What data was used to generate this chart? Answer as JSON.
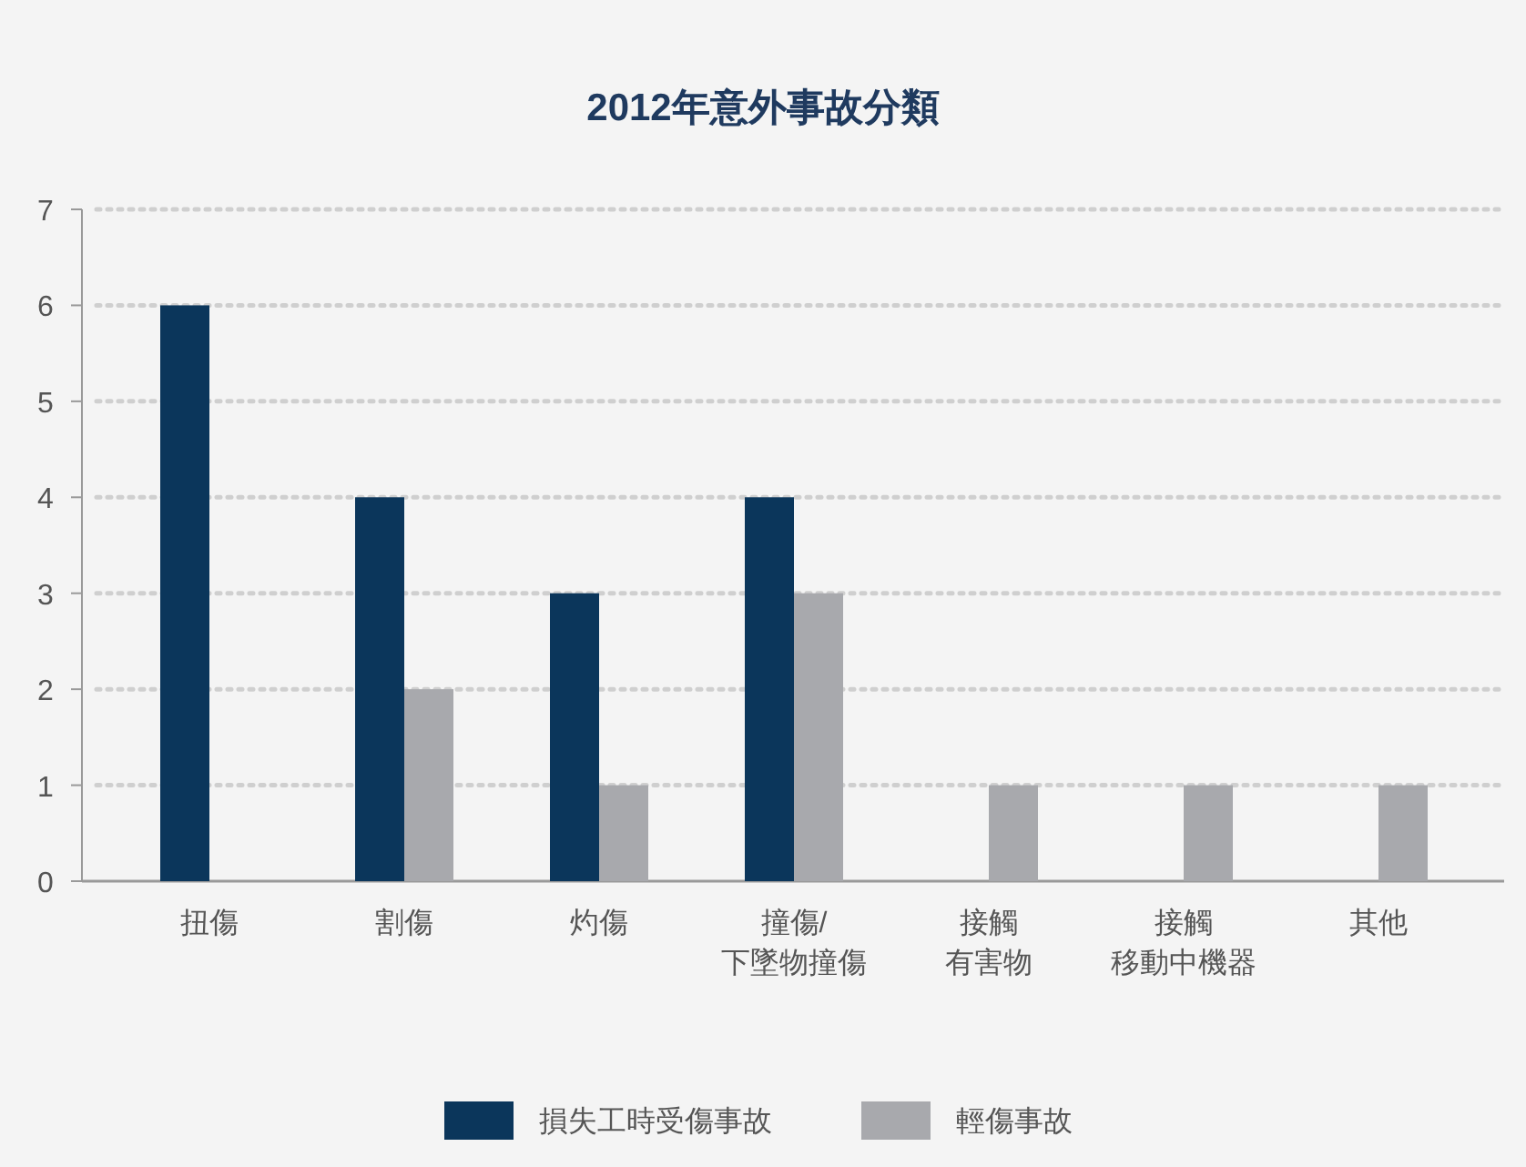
{
  "chart_data": {
    "type": "bar",
    "title": "2012年意外事故分類",
    "categories": [
      "扭傷",
      "割傷",
      "灼傷",
      "撞傷/下墜物撞傷",
      "接觸有害物",
      "接觸移動中機器",
      "其他"
    ],
    "series": [
      {
        "name": "損失工時受傷事故",
        "color": "#0b365b",
        "values": [
          6,
          4,
          3,
          4,
          null,
          null,
          null
        ]
      },
      {
        "name": "輕傷事故",
        "color": "#a8a9ad",
        "values": [
          null,
          2,
          1,
          3,
          1,
          1,
          1
        ]
      }
    ],
    "ylim": [
      0,
      7
    ],
    "yticks": [
      0,
      1,
      2,
      3,
      4,
      5,
      6,
      7
    ],
    "grid": "y",
    "legend": "bottom"
  }
}
